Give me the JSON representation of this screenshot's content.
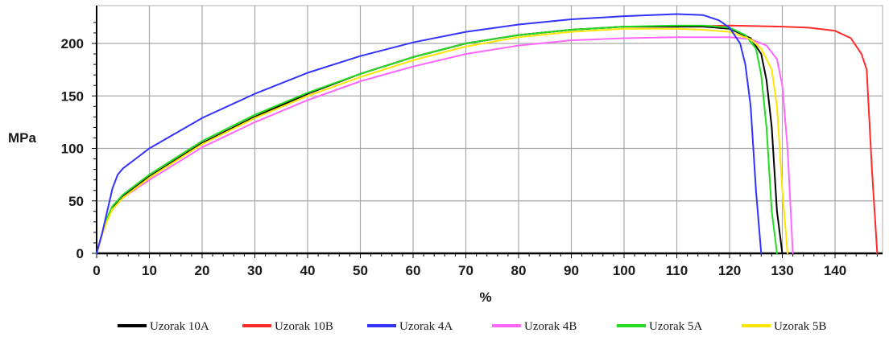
{
  "chart_data": {
    "type": "line",
    "xlabel": "%",
    "ylabel": "MPa",
    "xlim": [
      0,
      150
    ],
    "ylim": [
      0,
      230
    ],
    "x_ticks": [
      0,
      10,
      20,
      30,
      40,
      50,
      60,
      70,
      80,
      90,
      100,
      110,
      120,
      130,
      140
    ],
    "y_ticks": [
      0,
      50,
      100,
      150,
      200
    ],
    "x_tick_labels": [
      "0",
      "10",
      "20",
      "30",
      "40",
      "50",
      "60",
      "70",
      "80",
      "90",
      "100",
      "110",
      "120",
      "130",
      "140"
    ],
    "y_tick_labels": [
      "0",
      "50",
      "100",
      "150",
      "200"
    ],
    "grid": true,
    "legend_position": "bottom",
    "series": [
      {
        "name": "Uzorak 10A",
        "color": "#000000",
        "x": [
          0,
          1,
          2,
          3,
          5,
          10,
          20,
          30,
          40,
          50,
          60,
          70,
          80,
          90,
          100,
          110,
          115,
          120,
          124,
          126,
          127,
          128,
          129,
          130
        ],
        "y": [
          0,
          18,
          33,
          44,
          55,
          73,
          105,
          130,
          152,
          171,
          187,
          200,
          208,
          213,
          216,
          216,
          216,
          214,
          205,
          190,
          165,
          120,
          40,
          0
        ]
      },
      {
        "name": "Uzorak 10B",
        "color": "#ff2a2a",
        "x": [
          0,
          1,
          2,
          3,
          5,
          10,
          20,
          30,
          40,
          50,
          60,
          70,
          80,
          90,
          100,
          110,
          120,
          130,
          135,
          140,
          143,
          145,
          146,
          147,
          148
        ],
        "y": [
          0,
          18,
          33,
          44,
          55,
          73,
          105,
          130,
          152,
          171,
          187,
          200,
          208,
          213,
          216,
          216,
          217,
          216,
          215,
          212,
          205,
          190,
          175,
          80,
          0
        ]
      },
      {
        "name": "Uzorak 4A",
        "color": "#3333ff",
        "x": [
          0,
          1,
          2,
          3,
          4,
          5,
          10,
          20,
          30,
          40,
          50,
          60,
          70,
          80,
          90,
          100,
          110,
          115,
          118,
          120,
          122,
          123,
          124,
          125,
          126
        ],
        "y": [
          0,
          18,
          40,
          62,
          75,
          81,
          100,
          129,
          152,
          172,
          188,
          201,
          211,
          218,
          223,
          226,
          228,
          227,
          222,
          215,
          200,
          180,
          140,
          60,
          0
        ]
      },
      {
        "name": "Uzorak 4B",
        "color": "#ff66ff",
        "x": [
          0,
          1,
          2,
          3,
          5,
          10,
          20,
          30,
          40,
          50,
          60,
          70,
          80,
          90,
          100,
          110,
          120,
          124,
          127,
          129,
          130,
          131,
          132
        ],
        "y": [
          0,
          18,
          32,
          42,
          53,
          70,
          101,
          125,
          146,
          164,
          178,
          190,
          198,
          203,
          205,
          206,
          206,
          204,
          198,
          185,
          160,
          100,
          0
        ]
      },
      {
        "name": "Uzorak 5A",
        "color": "#22dd22",
        "x": [
          0,
          1,
          2,
          3,
          5,
          10,
          20,
          30,
          40,
          50,
          60,
          70,
          80,
          90,
          100,
          110,
          115,
          120,
          123,
          125,
          126,
          127,
          128,
          129
        ],
        "y": [
          0,
          18,
          34,
          45,
          56,
          75,
          107,
          132,
          153,
          171,
          187,
          200,
          208,
          213,
          216,
          217,
          217,
          215,
          208,
          195,
          170,
          120,
          40,
          0
        ]
      },
      {
        "name": "Uzorak 5B",
        "color": "#ffe600",
        "x": [
          0,
          1,
          2,
          3,
          5,
          10,
          20,
          30,
          40,
          50,
          60,
          70,
          80,
          90,
          100,
          110,
          115,
          120,
          124,
          126,
          128,
          129,
          130,
          131
        ],
        "y": [
          0,
          17,
          31,
          42,
          53,
          72,
          104,
          129,
          150,
          168,
          184,
          197,
          206,
          211,
          214,
          214,
          213,
          211,
          204,
          195,
          175,
          140,
          60,
          0
        ]
      }
    ]
  }
}
